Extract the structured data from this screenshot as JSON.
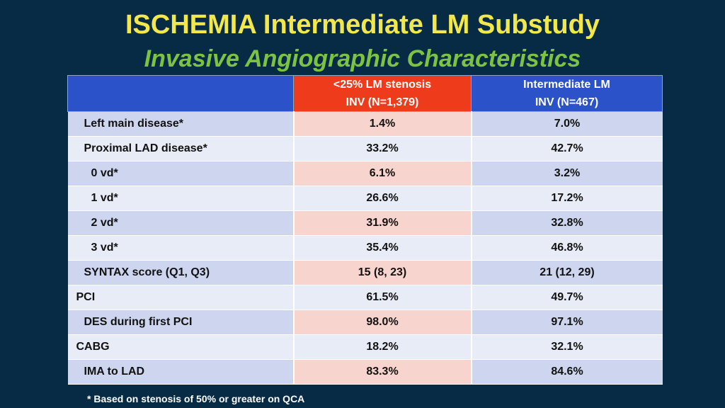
{
  "title": "ISCHEMIA Intermediate LM Substudy",
  "subtitle": "Invasive Angiographic Characteristics",
  "table": {
    "header": {
      "col0": "",
      "col1_line1": "<25% LM stenosis",
      "col1_line2": "INV (N=1,379)",
      "col2_line1": "Intermediate LM",
      "col2_line2": "INV (N=467)"
    },
    "rows": [
      {
        "label": "Left main disease*",
        "lt25": "1.4%",
        "intermediate": "7.0%"
      },
      {
        "label": "Proximal LAD disease*",
        "lt25": "33.2%",
        "intermediate": "42.7%"
      },
      {
        "label": "0 vd*",
        "lt25": "6.1%",
        "intermediate": "3.2%"
      },
      {
        "label": "1 vd*",
        "lt25": "26.6%",
        "intermediate": "17.2%"
      },
      {
        "label": "2 vd*",
        "lt25": "31.9%",
        "intermediate": "32.8%"
      },
      {
        "label": "3 vd*",
        "lt25": "35.4%",
        "intermediate": "46.8%"
      },
      {
        "label": "SYNTAX score (Q1, Q3)",
        "lt25": "15 (8, 23)",
        "intermediate": "21 (12, 29)"
      },
      {
        "label": "PCI",
        "lt25": "61.5%",
        "intermediate": "49.7%"
      },
      {
        "label": "DES during first PCI",
        "lt25": "98.0%",
        "intermediate": "97.1%"
      },
      {
        "label": "CABG",
        "lt25": "18.2%",
        "intermediate": "32.1%"
      },
      {
        "label": "IMA to LAD",
        "lt25": "83.3%",
        "intermediate": "84.6%"
      }
    ]
  },
  "footnote": "* Based on stenosis of 50% or greater on QCA"
}
